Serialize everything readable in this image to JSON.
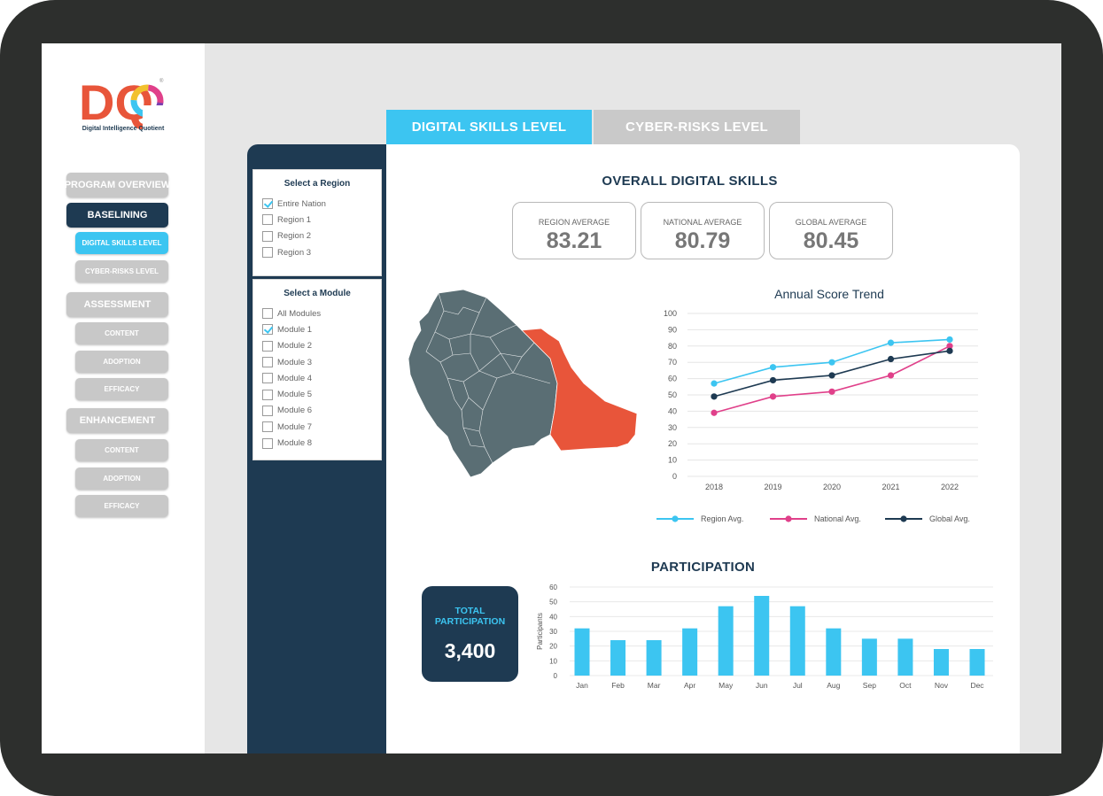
{
  "logo": {
    "text": "DQ",
    "tagline": "Digital Intelligence Quotient",
    "registered": "®"
  },
  "nav": {
    "program_overview": "PROGRAM OVERVIEW",
    "baselining": "BASELINING",
    "digital_skills_level": "DIGITAL SKILLS LEVEL",
    "cyber_risks_level": "CYBER-RISKS LEVEL",
    "assessment": "ASSESSMENT",
    "assessment_content": "CONTENT",
    "assessment_adoption": "ADOPTION",
    "assessment_efficacy": "EFFICACY",
    "enhancement": "ENHANCEMENT",
    "enhancement_content": "CONTENT",
    "enhancement_adoption": "ADOPTION",
    "enhancement_efficacy": "EFFICACY"
  },
  "tabs": {
    "active": "DIGITAL SKILLS LEVEL",
    "inactive": "CYBER-RISKS LEVEL"
  },
  "filters": {
    "region": {
      "title": "Select a Region",
      "options": [
        {
          "label": "Entire Nation",
          "checked": true
        },
        {
          "label": "Region 1",
          "checked": false
        },
        {
          "label": "Region 2",
          "checked": false
        },
        {
          "label": "Region 3",
          "checked": false
        }
      ]
    },
    "module": {
      "title": "Select a Module",
      "options": [
        {
          "label": "All Modules",
          "checked": false
        },
        {
          "label": "Module 1",
          "checked": true
        },
        {
          "label": "Module 2",
          "checked": false
        },
        {
          "label": "Module 3",
          "checked": false
        },
        {
          "label": "Module 4",
          "checked": false
        },
        {
          "label": "Module 5",
          "checked": false
        },
        {
          "label": "Module 6",
          "checked": false
        },
        {
          "label": "Module 7",
          "checked": false
        },
        {
          "label": "Module 8",
          "checked": false
        }
      ]
    }
  },
  "overall": {
    "title": "OVERALL DIGITAL SKILLS",
    "region_label": "REGION AVERAGE",
    "region_value": "83.21",
    "national_label": "NATIONAL AVERAGE",
    "national_value": "80.79",
    "global_label": "GLOBAL AVERAGE",
    "global_value": "80.45"
  },
  "colors": {
    "accent": "#3cc5f1",
    "navy": "#1e3a52",
    "national": "#e0408a",
    "map_region": "#5a6e74",
    "map_highlight": "#e8553a"
  },
  "chart_data": [
    {
      "type": "line",
      "title": "Annual Score Trend",
      "x": [
        "2018",
        "2019",
        "2020",
        "2021",
        "2022"
      ],
      "ylim": [
        0,
        100
      ],
      "yticks": [
        0,
        10,
        20,
        30,
        40,
        50,
        60,
        70,
        80,
        90,
        100
      ],
      "series": [
        {
          "name": "Region Avg.",
          "color": "#3cc5f1",
          "values": [
            57,
            67,
            70,
            82,
            84
          ]
        },
        {
          "name": "National Avg.",
          "color": "#e0408a",
          "values": [
            39,
            49,
            52,
            62,
            80
          ]
        },
        {
          "name": "Global Avg.",
          "color": "#1e3a52",
          "values": [
            49,
            59,
            62,
            72,
            77
          ]
        }
      ],
      "legend": "bottom"
    },
    {
      "type": "bar",
      "title": "PARTICIPATION",
      "ylabel": "Participants",
      "categories": [
        "Jan",
        "Feb",
        "Mar",
        "Apr",
        "May",
        "Jun",
        "Jul",
        "Aug",
        "Sep",
        "Oct",
        "Nov",
        "Dec"
      ],
      "values": [
        32,
        24,
        24,
        32,
        47,
        54,
        47,
        32,
        25,
        25,
        18,
        18
      ],
      "ylim": [
        0,
        60
      ],
      "yticks": [
        0,
        10,
        20,
        30,
        40,
        50,
        60
      ],
      "color": "#3cc5f1"
    }
  ],
  "participation": {
    "total_label": "TOTAL PARTICIPATION",
    "total_value": "3,400"
  }
}
